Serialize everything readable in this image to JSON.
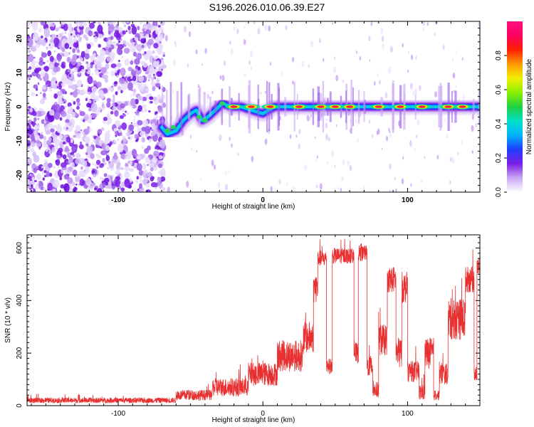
{
  "title": "S196.2026.010.06.39.E27",
  "chart_data": [
    {
      "type": "heatmap",
      "xlabel": "Height of straight line (km)",
      "ylabel": "Frequency (Hz)",
      "xlim": [
        -163,
        150
      ],
      "ylim": [
        -25,
        25
      ],
      "x_ticks": [
        -100,
        0,
        100
      ],
      "y_ticks": [
        -20,
        -10,
        0,
        10,
        20
      ],
      "colorbar": {
        "label": "Normalized spectral amplitude",
        "range": [
          0,
          1
        ],
        "ticks": [
          "0.0",
          "0.2",
          "0.4",
          "0.6",
          "0.8"
        ],
        "colors": [
          "#ffffff",
          "#c9a6f5",
          "#7a1fe6",
          "#1f3cff",
          "#00b4ff",
          "#00e0c8",
          "#20d040",
          "#8cf000",
          "#f0f000",
          "#ff9a00",
          "#ff2000",
          "#ff0060",
          "#ff1080"
        ]
      },
      "noise_region_x": [
        -163,
        -72
      ],
      "ridge": [
        {
          "x": -70,
          "y": -6
        },
        {
          "x": -66,
          "y": -8
        },
        {
          "x": -60,
          "y": -7
        },
        {
          "x": -55,
          "y": -4
        },
        {
          "x": -50,
          "y": -2
        },
        {
          "x": -46,
          "y": -1
        },
        {
          "x": -42,
          "y": -4
        },
        {
          "x": -38,
          "y": -3
        },
        {
          "x": -33,
          "y": -1
        },
        {
          "x": -28,
          "y": 1
        },
        {
          "x": -22,
          "y": 0
        },
        {
          "x": -15,
          "y": 0
        },
        {
          "x": -8,
          "y": -1
        },
        {
          "x": 0,
          "y": -2
        },
        {
          "x": 8,
          "y": 0
        },
        {
          "x": 20,
          "y": 0
        },
        {
          "x": 150,
          "y": 0
        }
      ],
      "hot_spots_x": [
        -20,
        -8,
        5,
        25,
        40,
        50,
        60,
        80,
        95,
        110,
        128,
        138
      ]
    },
    {
      "type": "line",
      "xlabel": "Height of straight line (km)",
      "ylabel": "SNR (10 * v/v)",
      "xlim": [
        -163,
        150
      ],
      "ylim": [
        0,
        650
      ],
      "x_ticks": [
        -100,
        0,
        100
      ],
      "y_ticks": [
        0,
        200,
        400,
        600
      ],
      "line_color": "#e83030",
      "segments": [
        {
          "x": [
            -163,
            -60
          ],
          "base": 20,
          "noise": 10
        },
        {
          "x": [
            -60,
            -35
          ],
          "base": 40,
          "noise": 20
        },
        {
          "x": [
            -35,
            -10
          ],
          "base": 70,
          "noise": 35
        },
        {
          "x": [
            -10,
            10
          ],
          "base": 120,
          "noise": 45
        },
        {
          "x": [
            10,
            28
          ],
          "base": 190,
          "noise": 60
        },
        {
          "x": [
            28,
            35
          ],
          "base": 260,
          "noise": 60
        },
        {
          "x": [
            35,
            38
          ],
          "base": 450,
          "noise": 60
        },
        {
          "x": [
            38,
            44
          ],
          "base": 560,
          "noise": 30
        },
        {
          "x": [
            44,
            48
          ],
          "base": 150,
          "noise": 30
        },
        {
          "x": [
            48,
            63
          ],
          "base": 570,
          "noise": 30
        },
        {
          "x": [
            63,
            66
          ],
          "base": 200,
          "noise": 40
        },
        {
          "x": [
            66,
            72
          ],
          "base": 580,
          "noise": 30
        },
        {
          "x": [
            72,
            76
          ],
          "base": 150,
          "noise": 40
        },
        {
          "x": [
            76,
            80
          ],
          "base": 60,
          "noise": 30
        },
        {
          "x": [
            80,
            86
          ],
          "base": 250,
          "noise": 60
        },
        {
          "x": [
            86,
            92
          ],
          "base": 480,
          "noise": 50
        },
        {
          "x": [
            92,
            96
          ],
          "base": 200,
          "noise": 60
        },
        {
          "x": [
            96,
            100
          ],
          "base": 450,
          "noise": 60
        },
        {
          "x": [
            100,
            108
          ],
          "base": 130,
          "noise": 40
        },
        {
          "x": [
            108,
            112
          ],
          "base": 50,
          "noise": 30
        },
        {
          "x": [
            112,
            118
          ],
          "base": 200,
          "noise": 60
        },
        {
          "x": [
            118,
            122
          ],
          "base": 40,
          "noise": 20
        },
        {
          "x": [
            122,
            128
          ],
          "base": 120,
          "noise": 40
        },
        {
          "x": [
            128,
            140
          ],
          "base": 330,
          "noise": 80
        },
        {
          "x": [
            140,
            146
          ],
          "base": 480,
          "noise": 50
        },
        {
          "x": [
            146,
            148
          ],
          "base": 120,
          "noise": 30
        },
        {
          "x": [
            148,
            150
          ],
          "base": 530,
          "noise": 30
        }
      ]
    }
  ]
}
